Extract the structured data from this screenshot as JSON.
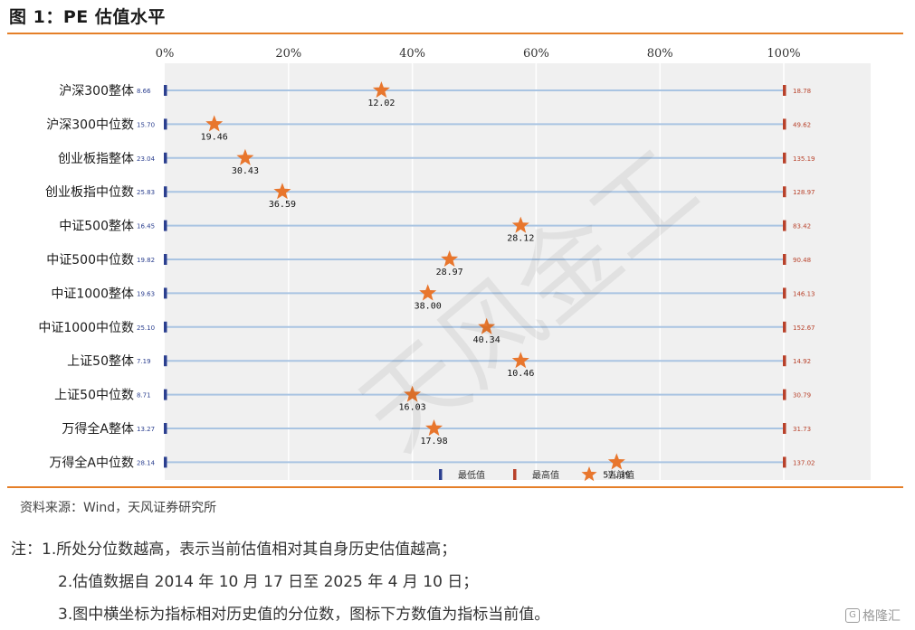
{
  "title": "图 1：PE 估值水平",
  "source": "资料来源：Wind，天风证券研究所",
  "notes": [
    "注：1.所处分位数越高，表示当前估值相对其自身历史估值越高；",
    "2.估值数据自 2014 年 10 月 17 日至 2025 年 4 月 10 日；",
    "3.图中横坐标为指标相对历史值的分位数，图标下方数值为指标当前值。"
  ],
  "watermark": "天风金工",
  "logo_text": "格隆汇",
  "colors": {
    "accent_rule": "#e57f28",
    "min_marker": "#2b3f8f",
    "max_marker": "#b8412a",
    "star": "#e8762d",
    "line": "#a9c4e2",
    "plot_bg": "#f0f0f0"
  },
  "chart_data": {
    "type": "scatter",
    "x_tick_labels": [
      "0%",
      "20%",
      "40%",
      "60%",
      "80%",
      "100%"
    ],
    "xlim": [
      0,
      100
    ],
    "legend": {
      "position": "bottom",
      "entries": [
        "最低值",
        "最高值",
        "当前值"
      ]
    },
    "rows": [
      {
        "label": "沪深300整体",
        "min": "8.66",
        "max": "18.78",
        "current": "12.02",
        "percentile": 35
      },
      {
        "label": "沪深300中位数",
        "min": "15.70",
        "max": "49.62",
        "current": "19.46",
        "percentile": 8
      },
      {
        "label": "创业板指整体",
        "min": "23.04",
        "max": "135.19",
        "current": "30.43",
        "percentile": 13
      },
      {
        "label": "创业板指中位数",
        "min": "25.83",
        "max": "128.97",
        "current": "36.59",
        "percentile": 19
      },
      {
        "label": "中证500整体",
        "min": "16.45",
        "max": "83.42",
        "current": "28.12",
        "percentile": 57.5
      },
      {
        "label": "中证500中位数",
        "min": "19.82",
        "max": "90.48",
        "current": "28.97",
        "percentile": 46
      },
      {
        "label": "中证1000整体",
        "min": "19.63",
        "max": "146.13",
        "current": "38.00",
        "percentile": 42.5
      },
      {
        "label": "中证1000中位数",
        "min": "25.10",
        "max": "152.67",
        "current": "40.34",
        "percentile": 52
      },
      {
        "label": "上证50整体",
        "min": "7.19",
        "max": "14.92",
        "current": "10.46",
        "percentile": 57.5
      },
      {
        "label": "上证50中位数",
        "min": "8.71",
        "max": "30.79",
        "current": "16.03",
        "percentile": 40
      },
      {
        "label": "万得全A整体",
        "min": "13.27",
        "max": "31.73",
        "current": "17.98",
        "percentile": 43.5
      },
      {
        "label": "万得全A中位数",
        "min": "28.14",
        "max": "137.02",
        "current": "57.39",
        "percentile": 73
      }
    ]
  }
}
